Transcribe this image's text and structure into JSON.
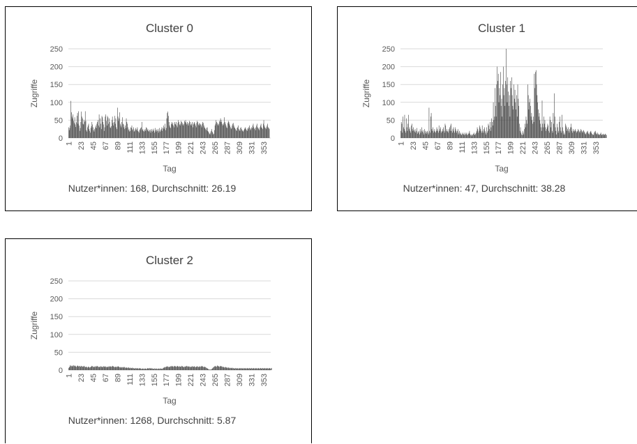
{
  "charts": [
    {
      "title": "Cluster 0",
      "caption": "Nutzer*innen: 168, Durchschnitt: 26.19",
      "chart_data": {
        "type": "bar",
        "title": "Cluster 0",
        "xlabel": "Tag",
        "ylabel": "Zugriffe",
        "ylim": [
          0,
          250
        ],
        "yticks": [
          "0",
          "50",
          "100",
          "150",
          "200",
          "250"
        ],
        "xticks": [
          "1",
          "23",
          "45",
          "67",
          "89",
          "111",
          "133",
          "155",
          "177",
          "199",
          "221",
          "243",
          "265",
          "287",
          "309",
          "331",
          "353"
        ],
        "x_start": 1,
        "x_end": 365,
        "grid": true,
        "values": [
          30,
          22,
          28,
          35,
          104,
          72,
          60,
          55,
          66,
          48,
          42,
          58,
          38,
          31,
          44,
          62,
          70,
          40,
          75,
          35,
          20,
          28,
          45,
          74,
          60,
          55,
          40,
          38,
          50,
          46,
          75,
          48,
          22,
          18,
          30,
          35,
          40,
          25,
          20,
          15,
          28,
          33,
          45,
          38,
          30,
          22,
          18,
          25,
          30,
          35,
          28,
          40,
          45,
          50,
          35,
          66,
          30,
          55,
          40,
          25,
          62,
          58,
          45,
          38,
          20,
          30,
          60,
          66,
          48,
          35,
          62,
          58,
          40,
          55,
          45,
          30,
          28,
          33,
          50,
          60,
          42,
          35,
          45,
          62,
          40,
          55,
          30,
          25,
          85,
          60,
          48,
          55,
          72,
          40,
          35,
          30,
          45,
          58,
          40,
          38,
          30,
          25,
          35,
          28,
          55,
          45,
          40,
          30,
          22,
          25,
          18,
          20,
          30,
          28,
          35,
          22,
          25,
          30,
          18,
          20,
          24,
          28,
          22,
          25,
          30,
          20,
          18,
          15,
          22,
          25,
          28,
          30,
          45,
          22,
          25,
          20,
          18,
          22,
          25,
          20,
          30,
          28,
          22,
          25,
          20,
          18,
          22,
          24,
          15,
          20,
          25,
          18,
          22,
          26,
          20,
          15,
          28,
          22,
          18,
          24,
          20,
          25,
          15,
          20,
          28,
          18,
          22,
          25,
          30,
          20,
          28,
          35,
          25,
          30,
          40,
          22,
          28,
          55,
          70,
          74,
          62,
          45,
          35,
          30,
          28,
          40,
          45,
          38,
          42,
          35,
          30,
          45,
          40,
          38,
          45,
          35,
          30,
          42,
          50,
          45,
          38,
          35,
          40,
          48,
          45,
          42,
          38,
          35,
          40,
          48,
          45,
          50,
          42,
          38,
          45,
          40,
          35,
          42,
          48,
          45,
          38,
          35,
          40,
          45,
          30,
          38,
          42,
          45,
          40,
          35,
          30,
          42,
          48,
          45,
          38,
          35,
          42,
          40,
          38,
          35,
          30,
          40,
          45,
          42,
          35,
          30,
          28,
          25,
          22,
          28,
          30,
          20,
          18,
          15,
          12,
          10,
          15,
          20,
          25,
          18,
          15,
          10,
          12,
          22,
          35,
          40,
          50,
          45,
          42,
          38,
          35,
          40,
          48,
          45,
          55,
          50,
          45,
          40,
          35,
          38,
          42,
          58,
          45,
          40,
          35,
          30,
          28,
          42,
          48,
          45,
          40,
          35,
          30,
          25,
          28,
          35,
          40,
          42,
          35,
          30,
          28,
          25,
          22,
          20,
          28,
          30,
          35,
          25,
          22,
          20,
          28,
          30,
          25,
          22,
          20,
          18,
          22,
          25,
          28,
          30,
          25,
          22,
          20,
          28,
          25,
          30,
          35,
          28,
          22,
          25,
          30,
          28,
          35,
          40,
          30,
          25,
          28,
          22,
          30,
          35,
          40,
          30,
          28,
          25,
          22,
          30,
          35,
          40,
          30,
          28,
          25,
          40,
          50,
          35,
          30,
          28,
          25,
          30,
          35,
          40,
          30,
          28,
          25
        ]
      }
    },
    {
      "title": "Cluster 1",
      "caption": "Nutzer*innen: 47, Durchschnitt: 38.28",
      "chart_data": {
        "type": "bar",
        "title": "Cluster 1",
        "xlabel": "Tag",
        "ylabel": "Zugriffe",
        "ylim": [
          0,
          250
        ],
        "yticks": [
          "0",
          "50",
          "100",
          "150",
          "200",
          "250"
        ],
        "xticks": [
          "1",
          "23",
          "45",
          "67",
          "89",
          "111",
          "133",
          "155",
          "177",
          "199",
          "221",
          "243",
          "265",
          "287",
          "309",
          "331",
          "353"
        ],
        "x_start": 1,
        "x_end": 365,
        "grid": true,
        "values": [
          20,
          45,
          40,
          15,
          60,
          30,
          25,
          65,
          20,
          15,
          55,
          30,
          20,
          40,
          65,
          25,
          30,
          20,
          15,
          35,
          40,
          25,
          20,
          30,
          22,
          18,
          25,
          15,
          20,
          28,
          12,
          18,
          15,
          20,
          10,
          25,
          15,
          20,
          30,
          18,
          22,
          15,
          10,
          25,
          20,
          15,
          12,
          18,
          20,
          15,
          10,
          85,
          20,
          15,
          60,
          70,
          25,
          20,
          30,
          15,
          20,
          25,
          18,
          15,
          20,
          30,
          25,
          20,
          15,
          35,
          20,
          25,
          30,
          15,
          20,
          18,
          25,
          30,
          20,
          15,
          40,
          35,
          20,
          25,
          18,
          20,
          15,
          25,
          30,
          20,
          35,
          40,
          20,
          15,
          25,
          30,
          20,
          15,
          30,
          25,
          20,
          15,
          20,
          25,
          10,
          15,
          20,
          12,
          15,
          10,
          8,
          12,
          15,
          10,
          12,
          8,
          15,
          10,
          12,
          15,
          8,
          10,
          12,
          15,
          20,
          12,
          8,
          10,
          5,
          8,
          10,
          12,
          15,
          10,
          8,
          12,
          15,
          20,
          30,
          25,
          15,
          20,
          35,
          30,
          25,
          20,
          15,
          35,
          20,
          15,
          25,
          30,
          20,
          15,
          10,
          30,
          15,
          20,
          40,
          35,
          25,
          45,
          20,
          30,
          55,
          45,
          35,
          100,
          50,
          60,
          140,
          90,
          60,
          150,
          200,
          160,
          180,
          100,
          140,
          120,
          185,
          90,
          110,
          60,
          150,
          200,
          120,
          140,
          90,
          160,
          250,
          150,
          100,
          170,
          130,
          90,
          120,
          60,
          160,
          140,
          170,
          120,
          90,
          80,
          150,
          110,
          135,
          100,
          80,
          120,
          60,
          150,
          110,
          90,
          40,
          20,
          30,
          15,
          10,
          8,
          20,
          15,
          10,
          25,
          40,
          30,
          60,
          50,
          40,
          150,
          120,
          80,
          100,
          110,
          90,
          60,
          70,
          50,
          40,
          60,
          45,
          180,
          140,
          185,
          190,
          150,
          120,
          100,
          80,
          60,
          70,
          50,
          40,
          30,
          20,
          105,
          40,
          30,
          60,
          40,
          50,
          30,
          20,
          25,
          30,
          40,
          35,
          20,
          15,
          60,
          50,
          30,
          45,
          20,
          15,
          70,
          40,
          125,
          60,
          30,
          20,
          10,
          40,
          30,
          15,
          20,
          45,
          60,
          30,
          20,
          15,
          65,
          30,
          20,
          10,
          15,
          10,
          40,
          35,
          30,
          20,
          25,
          30,
          20,
          15,
          25,
          30,
          40,
          30,
          20,
          15,
          25,
          20,
          18,
          22,
          25,
          20,
          15,
          18,
          20,
          25,
          22,
          18,
          15,
          20,
          25,
          22,
          18,
          15,
          20,
          22,
          18,
          15,
          12,
          10,
          15,
          18,
          20,
          15,
          12,
          10,
          15,
          18,
          20,
          15,
          12,
          10,
          8,
          10,
          15,
          18,
          20,
          15,
          12,
          10,
          15,
          12,
          10,
          8,
          10,
          12,
          15,
          10,
          8,
          10,
          12,
          10,
          8,
          10,
          12,
          10,
          8
        ]
      }
    },
    {
      "title": "Cluster 2",
      "caption": "Nutzer*innen: 1268, Durchschnitt: 5.87",
      "chart_data": {
        "type": "bar",
        "title": "Cluster 2",
        "xlabel": "Tag",
        "ylabel": "Zugriffe",
        "ylim": [
          0,
          250
        ],
        "yticks": [
          "0",
          "50",
          "100",
          "150",
          "200",
          "250"
        ],
        "xticks": [
          "1",
          "23",
          "45",
          "67",
          "89",
          "111",
          "133",
          "155",
          "177",
          "199",
          "221",
          "243",
          "265",
          "287",
          "309",
          "331",
          "353"
        ],
        "x_start": 1,
        "x_end": 365,
        "grid": true,
        "values": [
          6,
          8,
          10,
          14,
          12,
          11,
          13,
          10,
          12,
          14,
          11,
          13,
          12,
          10,
          9,
          11,
          13,
          12,
          10,
          11,
          12,
          9,
          10,
          12,
          11,
          10,
          9,
          11,
          12,
          10,
          8,
          9,
          10,
          8,
          7,
          9,
          10,
          8,
          7,
          8,
          9,
          10,
          12,
          11,
          10,
          9,
          8,
          10,
          11,
          9,
          10,
          12,
          11,
          10,
          9,
          8,
          10,
          9,
          11,
          10,
          9,
          8,
          10,
          11,
          9,
          10,
          11,
          9,
          8,
          10,
          9,
          8,
          10,
          11,
          9,
          10,
          11,
          9,
          10,
          12,
          11,
          10,
          9,
          8,
          10,
          9,
          8,
          10,
          9,
          11,
          10,
          9,
          8,
          7,
          9,
          8,
          7,
          8,
          9,
          7,
          8,
          9,
          7,
          6,
          8,
          7,
          6,
          7,
          8,
          6,
          5,
          7,
          6,
          5,
          6,
          7,
          5,
          6,
          5,
          4,
          5,
          6,
          5,
          4,
          6,
          5,
          4,
          5,
          6,
          4,
          5,
          4,
          3,
          4,
          5,
          4,
          3,
          4,
          5,
          4,
          3,
          4,
          5,
          6,
          4,
          5,
          6,
          4,
          5,
          6,
          4,
          5,
          4,
          3,
          4,
          5,
          3,
          4,
          5,
          3,
          4,
          3,
          4,
          5,
          3,
          4,
          5,
          4,
          3,
          4,
          5,
          6,
          8,
          7,
          9,
          8,
          10,
          9,
          11,
          10,
          9,
          8,
          10,
          9,
          11,
          10,
          12,
          11,
          10,
          9,
          11,
          12,
          10,
          11,
          9,
          10,
          12,
          11,
          10,
          9,
          11,
          10,
          9,
          10,
          12,
          11,
          10,
          9,
          8,
          10,
          9,
          11,
          10,
          12,
          11,
          9,
          10,
          11,
          9,
          10,
          8,
          9,
          10,
          11,
          10,
          9,
          10,
          11,
          9,
          8,
          10,
          9,
          11,
          10,
          9,
          8,
          10,
          11,
          9,
          10,
          12,
          11,
          10,
          9,
          8,
          10,
          9,
          8,
          7,
          6,
          5,
          4,
          3,
          2,
          1,
          2,
          1,
          2,
          3,
          4,
          6,
          8,
          9,
          10,
          12,
          11,
          9,
          10,
          13,
          11,
          12,
          10,
          9,
          11,
          12,
          10,
          11,
          9,
          10,
          8,
          9,
          7,
          8,
          9,
          7,
          8,
          6,
          7,
          8,
          6,
          5,
          7,
          6,
          5,
          6,
          7,
          5,
          6,
          5,
          4,
          5,
          6,
          5,
          4,
          6,
          5,
          4,
          5,
          6,
          4,
          5,
          6,
          5,
          4,
          5,
          6,
          4,
          5,
          6,
          5,
          4,
          5,
          6,
          5,
          4,
          5,
          6,
          5,
          4,
          5,
          6,
          5,
          4,
          5,
          6,
          5,
          4,
          5,
          6,
          5,
          4,
          5,
          6,
          5,
          4,
          5,
          6,
          5,
          4,
          5,
          6,
          5,
          4,
          5,
          6,
          5,
          4,
          5,
          6,
          5,
          4,
          5,
          6,
          5,
          4,
          5,
          6
        ]
      }
    }
  ]
}
